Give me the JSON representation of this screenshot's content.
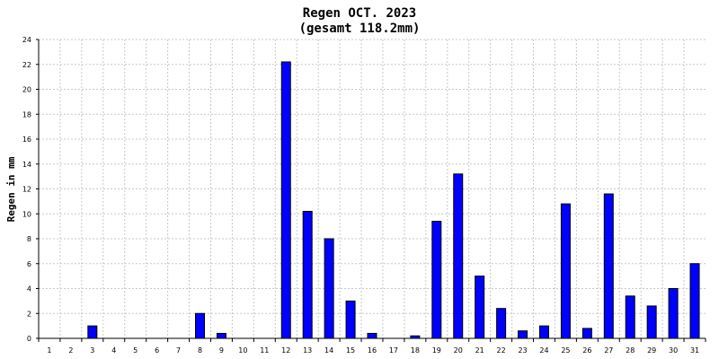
{
  "chart_data": {
    "type": "bar",
    "title": "Regen OCT. 2023",
    "subtitle": "(gesamt 118.2mm)",
    "xlabel": "",
    "ylabel": "Regen in mm",
    "ylim": [
      0,
      24
    ],
    "yticks": [
      0,
      2,
      4,
      6,
      8,
      10,
      12,
      14,
      16,
      18,
      20,
      22,
      24
    ],
    "categories": [
      "1",
      "2",
      "3",
      "4",
      "5",
      "6",
      "7",
      "8",
      "9",
      "10",
      "11",
      "12",
      "13",
      "14",
      "15",
      "16",
      "17",
      "18",
      "19",
      "20",
      "21",
      "22",
      "23",
      "24",
      "25",
      "26",
      "27",
      "28",
      "29",
      "30",
      "31"
    ],
    "values": [
      0,
      0,
      1.0,
      0,
      0,
      0,
      0,
      2.0,
      0.4,
      0,
      0,
      22.2,
      10.2,
      8.0,
      3.0,
      0.4,
      0,
      0.2,
      9.4,
      13.2,
      5.0,
      2.4,
      0.6,
      1.0,
      10.8,
      0.8,
      11.6,
      3.4,
      2.6,
      4.0,
      6.0
    ],
    "grid": true,
    "bar_color": "#0000ff"
  }
}
